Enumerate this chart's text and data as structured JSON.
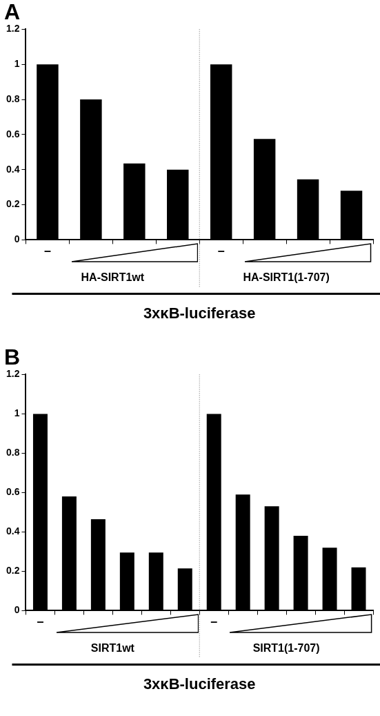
{
  "chart_data": [
    {
      "type": "bar",
      "title": "A",
      "xlabel": "3xκB-luciferase",
      "categories": [
        "–",
        null,
        null,
        null,
        "–",
        null,
        null,
        null
      ],
      "values": [
        1,
        0.8,
        0.435,
        0.4,
        1,
        0.575,
        0.345,
        0.28
      ],
      "color": "#000000",
      "ylim": [
        0,
        1.2
      ],
      "yticks": [
        0,
        0.2,
        0.4,
        0.6,
        0.8,
        1,
        1.2
      ],
      "annotations": [
        "HA-SIRT1wt",
        "HA-SIRT1(1-707)"
      ]
    },
    {
      "type": "bar",
      "title": "B",
      "xlabel": "3xκB-luciferase",
      "categories": [
        "–",
        null,
        null,
        null,
        null,
        null,
        "–",
        null,
        null,
        null,
        null,
        null
      ],
      "values": [
        1,
        0.58,
        0.465,
        0.295,
        0.295,
        0.215,
        1,
        0.59,
        0.53,
        0.38,
        0.32,
        0.22
      ],
      "color": "#000000",
      "ylim": [
        0,
        1.2
      ],
      "yticks": [
        0,
        0.2,
        0.4,
        0.6,
        0.8,
        1,
        1.2
      ],
      "annotations": [
        "SIRT1wt",
        "SIRT1(1-707)"
      ]
    }
  ]
}
